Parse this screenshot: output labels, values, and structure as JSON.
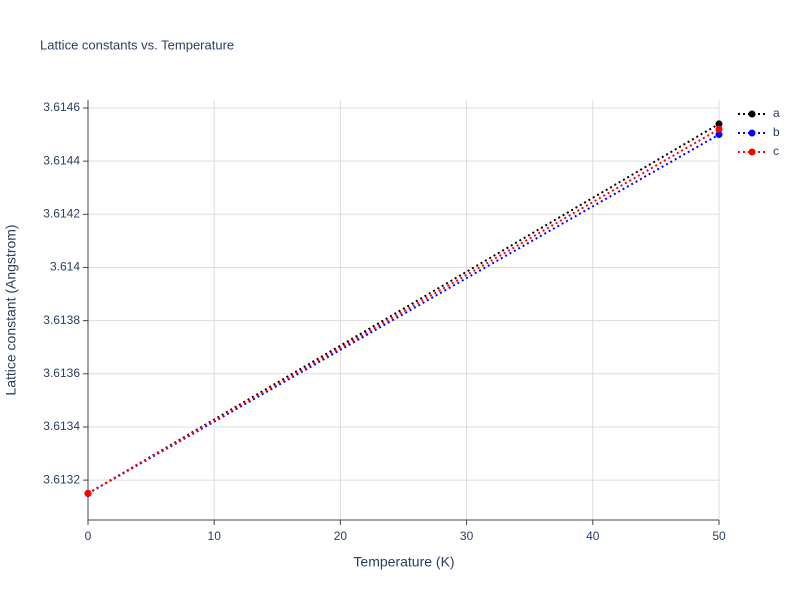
{
  "chart_data": {
    "type": "line",
    "title": "Lattice constants vs. Temperature",
    "xlabel": "Temperature (K)",
    "ylabel": "Lattice constant (Angstrom)",
    "x": [
      0,
      50
    ],
    "series": [
      {
        "name": "a",
        "color": "#000000",
        "values": [
          3.61315,
          3.61454
        ]
      },
      {
        "name": "b",
        "color": "#0000ff",
        "values": [
          3.61315,
          3.6145
        ]
      },
      {
        "name": "c",
        "color": "#ff0000",
        "values": [
          3.61315,
          3.61452
        ]
      }
    ],
    "xlim": [
      0,
      50
    ],
    "xticks": [
      0,
      10,
      20,
      30,
      40,
      50
    ],
    "ylim": [
      3.61305,
      3.61463
    ],
    "yticks": [
      3.6132,
      3.6134,
      3.6136,
      3.6138,
      3.614,
      3.6142,
      3.6144,
      3.6146
    ],
    "grid": true,
    "legend": "right"
  }
}
